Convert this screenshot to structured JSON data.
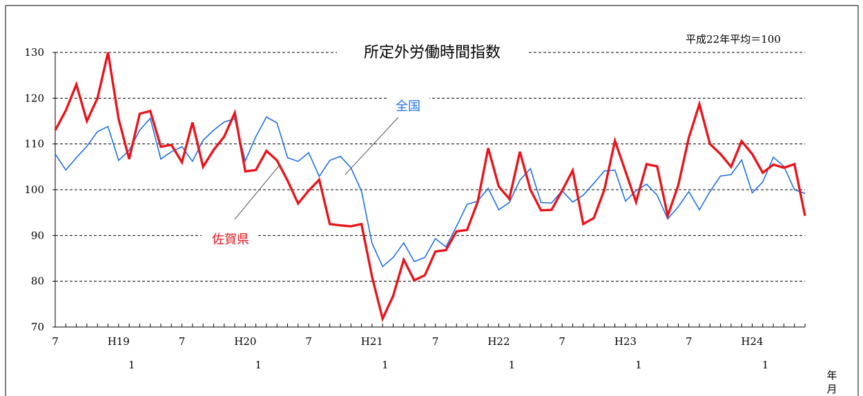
{
  "chart_data": {
    "type": "line",
    "title": "所定外労働時間指数",
    "note": "平成22年平均＝100",
    "xlabel": "年月",
    "ylim": [
      70,
      130
    ],
    "y_ticks": [
      70,
      80,
      90,
      100,
      110,
      120,
      130
    ],
    "x_tick_labels": [
      {
        "i": 0,
        "top": "7",
        "bottom": ""
      },
      {
        "i": 6,
        "top": "H19",
        "bottom": "1"
      },
      {
        "i": 12,
        "top": "7",
        "bottom": ""
      },
      {
        "i": 18,
        "top": "H20",
        "bottom": "1"
      },
      {
        "i": 24,
        "top": "7",
        "bottom": ""
      },
      {
        "i": 30,
        "top": "H21",
        "bottom": "1"
      },
      {
        "i": 36,
        "top": "7",
        "bottom": ""
      },
      {
        "i": 42,
        "top": "H22",
        "bottom": "1"
      },
      {
        "i": 48,
        "top": "7",
        "bottom": ""
      },
      {
        "i": 54,
        "top": "H23",
        "bottom": "1"
      },
      {
        "i": 60,
        "top": "7",
        "bottom": ""
      },
      {
        "i": 66,
        "top": "H24",
        "bottom": "1"
      }
    ],
    "grid": "horizontal-dashed",
    "series": [
      {
        "name": "全国",
        "color": "#1f6fe0",
        "values": [
          107.8,
          104.3,
          107.0,
          109.5,
          112.7,
          113.8,
          106.4,
          108.6,
          113.0,
          115.6,
          106.7,
          108.3,
          109.4,
          106.2,
          110.8,
          113.0,
          114.8,
          115.5,
          106.3,
          111.6,
          115.9,
          114.6,
          107.0,
          106.2,
          108.1,
          102.9,
          106.4,
          107.3,
          104.8,
          99.7,
          88.3,
          83.2,
          85.2,
          88.4,
          84.3,
          85.2,
          89.3,
          87.5,
          92.0,
          96.8,
          97.5,
          100.3,
          95.6,
          97.2,
          102.1,
          104.6,
          97.2,
          97.1,
          99.8,
          97.3,
          98.8,
          101.4,
          104.1,
          104.3,
          97.5,
          99.8,
          101.2,
          98.8,
          93.6,
          96.3,
          99.6,
          95.6,
          99.6,
          103.0,
          103.3,
          106.5,
          99.3,
          101.7,
          107.1,
          105.1,
          100.0,
          99.2
        ]
      },
      {
        "name": "佐賀県",
        "color": "#e8141b",
        "values": [
          113.0,
          117.3,
          123.0,
          115.0,
          120.0,
          130.0,
          115.5,
          106.7,
          116.6,
          117.2,
          109.4,
          109.8,
          106.0,
          114.7,
          105.0,
          108.7,
          111.6,
          116.8,
          104.0,
          104.3,
          108.5,
          106.4,
          102.0,
          97.0,
          99.8,
          102.2,
          92.5,
          92.2,
          92.0,
          92.5,
          81.0,
          71.8,
          76.8,
          84.7,
          80.2,
          81.3,
          86.5,
          86.8,
          90.9,
          91.2,
          97.3,
          109.1,
          100.7,
          98.0,
          108.3,
          100.0,
          95.5,
          95.6,
          99.8,
          104.2,
          92.5,
          93.8,
          100.0,
          110.7,
          104.0,
          97.3,
          105.6,
          105.1,
          94.3,
          101.0,
          111.4,
          118.7,
          110.0,
          107.8,
          105.0,
          110.6,
          107.8,
          103.7,
          105.5,
          104.8,
          105.6,
          94.3
        ]
      }
    ]
  }
}
